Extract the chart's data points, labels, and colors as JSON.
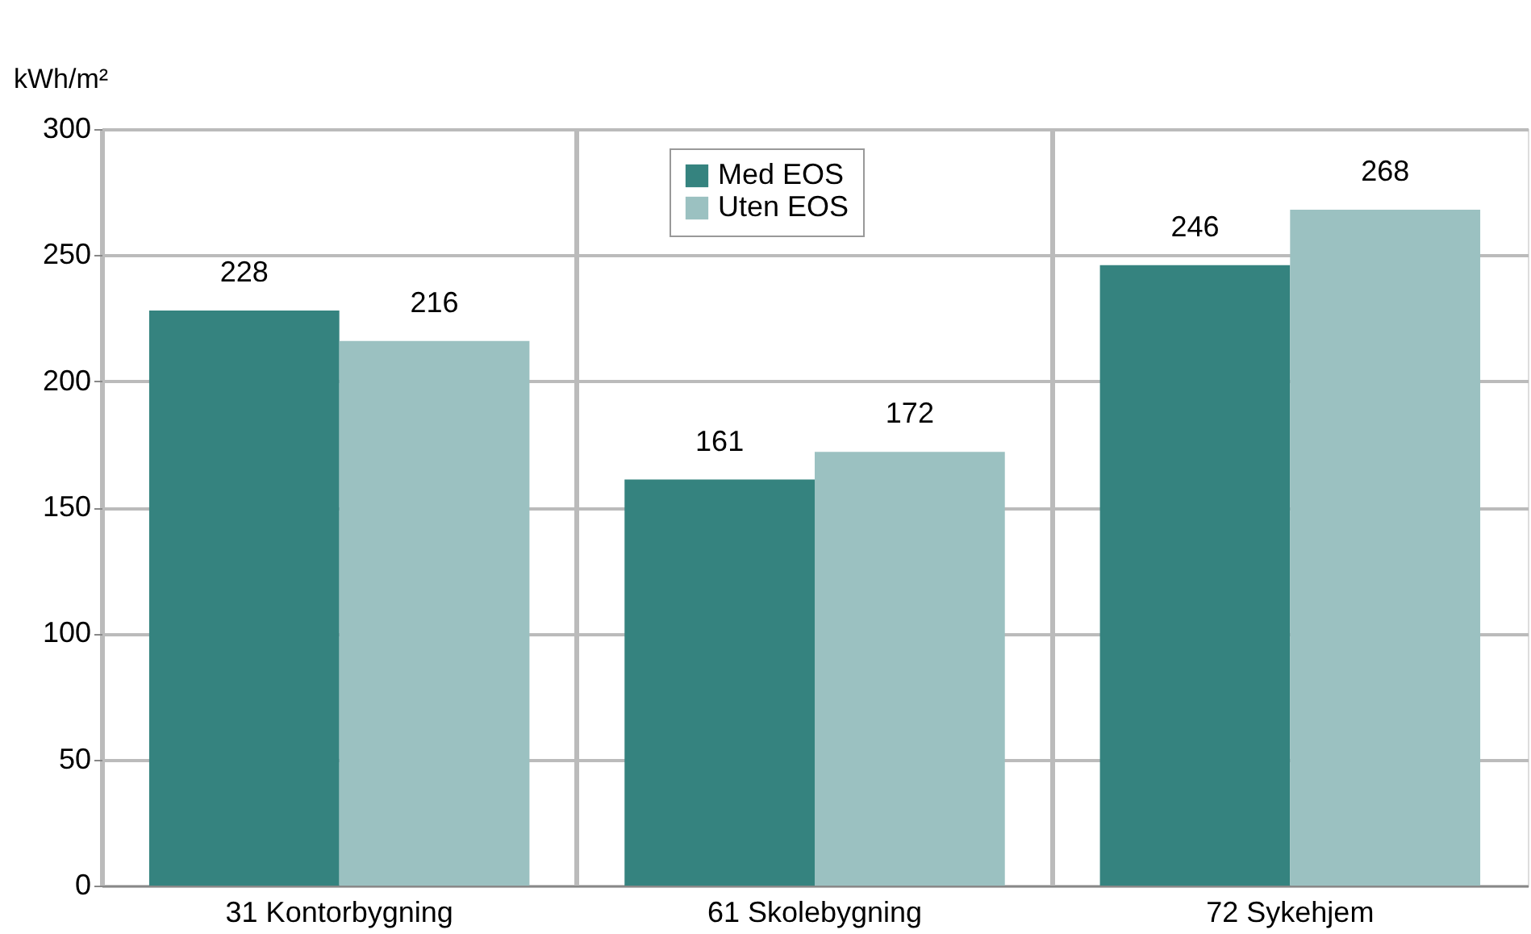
{
  "chart_data": {
    "type": "bar",
    "ylabel": "kWh/m²",
    "categories": [
      "31 Kontorbygning",
      "61 Skolebygning",
      "72 Sykehjem"
    ],
    "series": [
      {
        "name": "Med EOS",
        "color": "#35837f",
        "values": [
          228,
          161,
          246
        ]
      },
      {
        "name": "Uten EOS",
        "color": "#9bc1c1",
        "values": [
          216,
          172,
          268
        ]
      }
    ],
    "ylim": [
      0,
      300
    ],
    "yticks": [
      0,
      50,
      100,
      150,
      200,
      250,
      300
    ],
    "grid": true,
    "legend": "top",
    "data_labels": true
  }
}
